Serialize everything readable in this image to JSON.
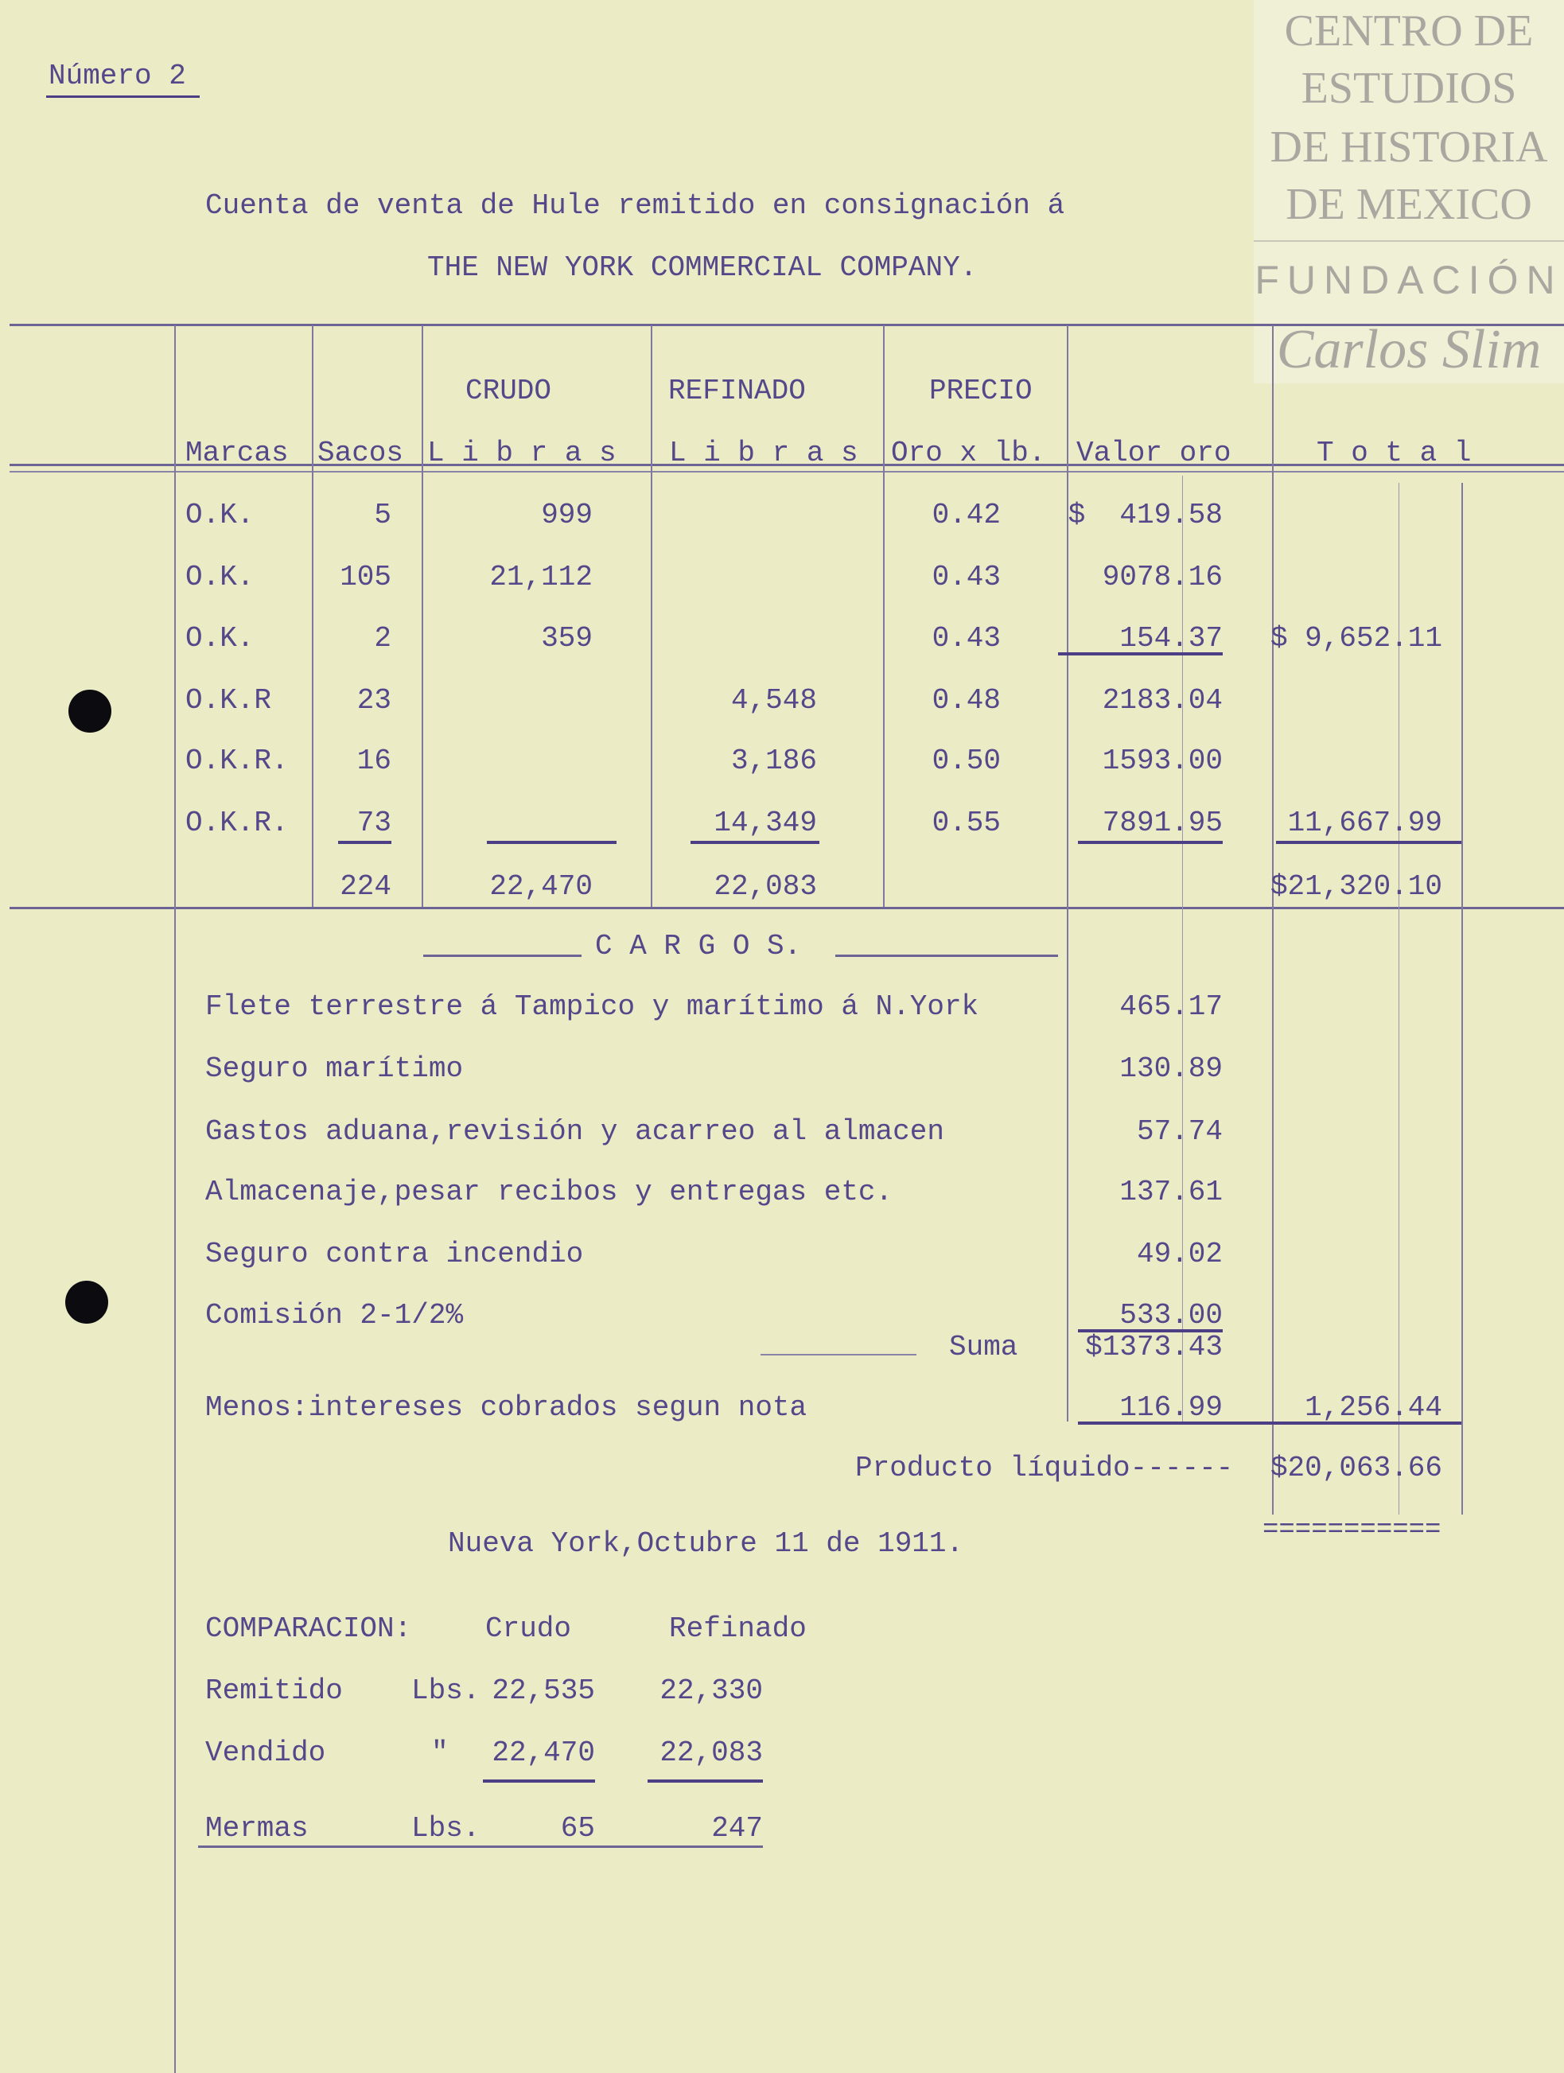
{
  "page_number": "Número 2",
  "title_line1": "Cuenta de venta de Hule remitido en consignación á",
  "title_line2": "THE NEW YORK COMMERCIAL COMPANY.",
  "watermark": {
    "line1": "CENTRO DE",
    "line2": "ESTUDIOS",
    "line3": "DE HISTORIA",
    "line4": "DE MEXICO",
    "line5": "FUNDACIÓN",
    "signature": "Carlos Slim"
  },
  "table": {
    "group_headers": {
      "crudo": "CRUDO",
      "refinado": "REFINADO",
      "precio": "PRECIO"
    },
    "headers": {
      "marcas": "Marcas",
      "sacos": "Sacos",
      "crudo_libras": "L i b r a s",
      "refinado_libras": "L i b r a s",
      "precio": "Oro x lb.",
      "valor": "Valor oro",
      "total": "T o t a l"
    },
    "rows": [
      {
        "marca": "O.K.",
        "sacos": "5",
        "crudo": "999",
        "refinado": "",
        "precio": "0.42",
        "valor": "$  419.58",
        "total": ""
      },
      {
        "marca": "O.K.",
        "sacos": "105",
        "crudo": "21,112",
        "refinado": "",
        "precio": "0.43",
        "valor": "9078.16",
        "total": ""
      },
      {
        "marca": "O.K.",
        "sacos": "2",
        "crudo": "359",
        "refinado": "",
        "precio": "0.43",
        "valor": "154.37",
        "total": "$ 9,652.11"
      },
      {
        "marca": "O.K.R",
        "sacos": "23",
        "crudo": "",
        "refinado": "4,548",
        "precio": "0.48",
        "valor": "2183.04",
        "total": ""
      },
      {
        "marca": "O.K.R.",
        "sacos": "16",
        "crudo": "",
        "refinado": "3,186",
        "precio": "0.50",
        "valor": "1593.00",
        "total": ""
      },
      {
        "marca": "O.K.R.",
        "sacos": "73",
        "crudo": "",
        "refinado": "14,349",
        "precio": "0.55",
        "valor": "7891.95",
        "total": "11,667.99"
      }
    ],
    "totals": {
      "sacos": "224",
      "crudo": "22,470",
      "refinado": "22,083",
      "total": "$21,320.10"
    }
  },
  "cargos": {
    "heading": "C A R G O S.",
    "items": [
      {
        "label": "Flete terrestre á Tampico y marítimo á N.York",
        "amount": "465.17"
      },
      {
        "label": "Seguro marítimo",
        "amount": "130.89"
      },
      {
        "label": "Gastos aduana,revisión y acarreo al almacen",
        "amount": "57.74"
      },
      {
        "label": "Almacenaje,pesar recibos y entregas etc.",
        "amount": "137.61"
      },
      {
        "label": "Seguro contra incendio",
        "amount": "49.02"
      },
      {
        "label": "Comisión 2-1/2%",
        "amount": "533.00"
      }
    ],
    "suma_label": "Suma",
    "suma": "$1373.43",
    "menos_label": "Menos:intereses cobrados segun nota",
    "menos_amount": "116.99",
    "net_cargos": "1,256.44",
    "producto_label": "Producto líquido------",
    "producto": "$20,063.66",
    "double_rule": "==========="
  },
  "place_date": "Nueva York,Octubre 11 de 1911.",
  "comparacion": {
    "label": "COMPARACION:",
    "col_crudo": "Crudo",
    "col_refinado": "Refinado",
    "remitido": {
      "label": "Remitido",
      "unit": "Lbs.",
      "crudo": "22,535",
      "refinado": "22,330"
    },
    "vendido": {
      "label": "Vendido",
      "unit": "\"",
      "crudo": "22,470",
      "refinado": "22,083"
    },
    "mermas": {
      "label": "Mermas",
      "unit": "Lbs.",
      "crudo": "65",
      "refinado": "247"
    }
  }
}
